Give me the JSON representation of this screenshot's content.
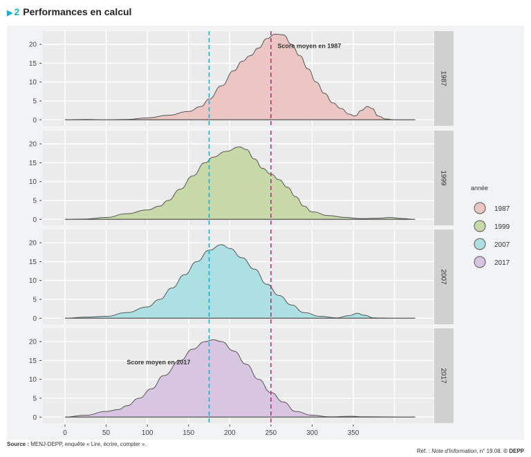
{
  "header": {
    "marker": "▶",
    "number": "2",
    "title": "Performances en calcul"
  },
  "chart_data": {
    "type": "area",
    "xlim": [
      -10,
      425
    ],
    "ylim": [
      -1.6,
      23.5
    ],
    "x_ticks": [
      "0",
      "50",
      "100",
      "150",
      "200",
      "250",
      "300",
      "350"
    ],
    "y_ticks": [
      "0",
      "5",
      "10",
      "15",
      "20"
    ],
    "grid": true,
    "reference_lines": [
      {
        "x": 175,
        "color": "#1ab1c9",
        "style": "dashed"
      },
      {
        "x": 250,
        "color": "#c8278a",
        "style": "dashed"
      }
    ],
    "legend": {
      "title": "année",
      "placement": "right"
    },
    "series": [
      {
        "name": "1987",
        "color": "#ecc6c2",
        "x": [
          0,
          25,
          50,
          75,
          100,
          125,
          150,
          165,
          175,
          190,
          205,
          215,
          225,
          235,
          245,
          255,
          265,
          275,
          285,
          295,
          305,
          315,
          325,
          335,
          345,
          352,
          360,
          367,
          373,
          380,
          390,
          400,
          425
        ],
        "y": [
          0,
          0.1,
          0,
          0.1,
          0.5,
          1.2,
          2.2,
          3.5,
          5.5,
          9,
          13,
          15.5,
          17,
          19,
          21.5,
          22.7,
          22.5,
          20,
          17,
          13.5,
          10,
          7,
          4.5,
          3,
          1.5,
          1,
          2.5,
          3.5,
          3,
          1,
          0.2,
          0,
          0
        ]
      },
      {
        "name": "1999",
        "color": "#c7d9a9",
        "x": [
          0,
          25,
          50,
          75,
          100,
          115,
          125,
          140,
          155,
          170,
          180,
          195,
          212,
          220,
          230,
          240,
          250,
          260,
          270,
          280,
          290,
          300,
          320,
          340,
          360,
          380,
          395,
          410,
          425
        ],
        "y": [
          0,
          0.1,
          0.5,
          1.5,
          2.5,
          3.5,
          5,
          8,
          11.5,
          15,
          16.5,
          18,
          19.2,
          18.5,
          16,
          13.5,
          12,
          10.5,
          8.5,
          6,
          3.5,
          2,
          1,
          0.5,
          0.2,
          0.3,
          0.5,
          0.2,
          0
        ]
      },
      {
        "name": "2007",
        "color": "#ade0e2",
        "x": [
          0,
          25,
          50,
          75,
          100,
          115,
          130,
          145,
          160,
          175,
          190,
          200,
          215,
          230,
          245,
          260,
          275,
          290,
          310,
          330,
          345,
          355,
          363,
          375,
          400,
          425
        ],
        "y": [
          0,
          0.3,
          0.5,
          1.5,
          3,
          5,
          8,
          11.5,
          15,
          18,
          19.5,
          18.5,
          16,
          13,
          9,
          6,
          3.5,
          1.5,
          0.5,
          0.1,
          0.7,
          1.3,
          0.8,
          0.1,
          0,
          0
        ]
      },
      {
        "name": "2017",
        "color": "#d8c5e1",
        "x": [
          0,
          25,
          50,
          65,
          75,
          90,
          105,
          120,
          140,
          155,
          170,
          180,
          190,
          205,
          220,
          235,
          250,
          265,
          280,
          300,
          320,
          350,
          360,
          425
        ],
        "y": [
          0,
          0.5,
          1.5,
          2,
          3,
          5,
          7.5,
          11,
          15,
          18,
          20,
          20.5,
          20,
          17.5,
          14,
          10,
          6.5,
          4,
          1.5,
          0.5,
          0.1,
          0.2,
          0.1,
          0
        ]
      }
    ],
    "annotations": [
      {
        "facet": "1987",
        "text": "Score moyen en 1987",
        "x": 258,
        "y": 19
      },
      {
        "facet": "2017",
        "text": "Score moyen en 2017",
        "x": 75,
        "y": 14
      }
    ]
  },
  "footer": {
    "source_label": "Source :",
    "source_text": " MENJ-DEPP, enquête « Lire, écrire, compter ».",
    "ref_prefix": "Réf. : ",
    "ref_pub": "Note d'Information",
    "ref_rest": ", n° 19.08. ",
    "ref_copy": "© DEPP"
  }
}
